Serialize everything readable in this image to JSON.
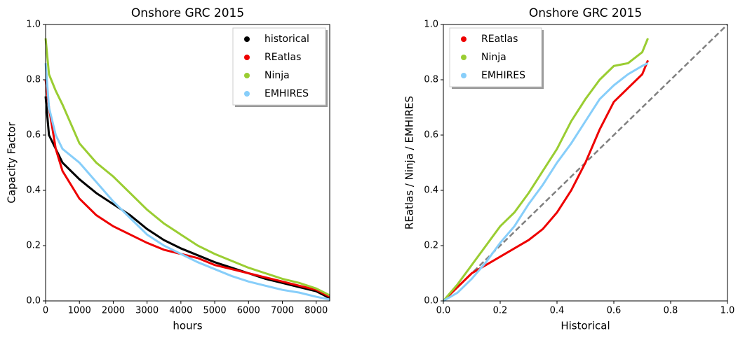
{
  "chart_data": [
    {
      "type": "line",
      "title": "Onshore GRC 2015",
      "xlabel": "hours",
      "ylabel": "Capacity Factor",
      "x": [
        0,
        100,
        300,
        500,
        1000,
        1500,
        2000,
        2500,
        3000,
        3500,
        4000,
        4500,
        5000,
        5500,
        6000,
        6500,
        7000,
        7500,
        8000,
        8400
      ],
      "series": [
        {
          "name": "historical",
          "color": "#000000",
          "values": [
            0.74,
            0.6,
            0.55,
            0.5,
            0.44,
            0.39,
            0.35,
            0.31,
            0.26,
            0.22,
            0.19,
            0.165,
            0.14,
            0.12,
            0.1,
            0.08,
            0.065,
            0.05,
            0.035,
            0.01
          ]
        },
        {
          "name": "REatlas",
          "color": "#ee0000",
          "values": [
            0.8,
            0.7,
            0.55,
            0.47,
            0.37,
            0.31,
            0.27,
            0.24,
            0.21,
            0.185,
            0.17,
            0.155,
            0.13,
            0.115,
            0.1,
            0.085,
            0.07,
            0.055,
            0.04,
            0.015
          ]
        },
        {
          "name": "Ninja",
          "color": "#9acd32",
          "values": [
            0.95,
            0.82,
            0.76,
            0.71,
            0.57,
            0.5,
            0.45,
            0.39,
            0.33,
            0.28,
            0.24,
            0.2,
            0.17,
            0.145,
            0.12,
            0.1,
            0.08,
            0.065,
            0.045,
            0.02
          ]
        },
        {
          "name": "EMHIRES",
          "color": "#87cefa",
          "values": [
            0.86,
            0.7,
            0.6,
            0.55,
            0.5,
            0.43,
            0.36,
            0.3,
            0.24,
            0.2,
            0.17,
            0.14,
            0.115,
            0.09,
            0.07,
            0.055,
            0.04,
            0.03,
            0.015,
            0.005
          ]
        }
      ],
      "xlim": [
        0,
        8400
      ],
      "ylim": [
        0,
        1
      ],
      "xticks": [
        0,
        1000,
        2000,
        3000,
        4000,
        5000,
        6000,
        7000,
        8000
      ],
      "yticks": [
        {
          "value": 0,
          "label": "0.0"
        },
        0.2,
        0.4,
        0.6,
        0.8,
        {
          "value": 1,
          "label": "1.0"
        }
      ],
      "legend": "upper right",
      "diagonal": false
    },
    {
      "type": "line",
      "title": "Onshore GRC 2015",
      "xlabel": "Historical",
      "ylabel": "REatlas / Ninja / EMHIRES",
      "x": [
        0,
        0.05,
        0.1,
        0.15,
        0.2,
        0.25,
        0.3,
        0.35,
        0.4,
        0.45,
        0.5,
        0.55,
        0.6,
        0.65,
        0.7,
        0.72
      ],
      "series": [
        {
          "name": "REatlas",
          "color": "#ee0000",
          "values": [
            0,
            0.05,
            0.1,
            0.13,
            0.16,
            0.19,
            0.22,
            0.26,
            0.32,
            0.4,
            0.5,
            0.62,
            0.72,
            0.77,
            0.82,
            0.87
          ]
        },
        {
          "name": "Ninja",
          "color": "#9acd32",
          "values": [
            0,
            0.06,
            0.13,
            0.2,
            0.27,
            0.32,
            0.39,
            0.47,
            0.55,
            0.65,
            0.73,
            0.8,
            0.85,
            0.86,
            0.9,
            0.95
          ]
        },
        {
          "name": "EMHIRES",
          "color": "#87cefa",
          "values": [
            0,
            0.03,
            0.08,
            0.14,
            0.21,
            0.27,
            0.35,
            0.42,
            0.5,
            0.57,
            0.65,
            0.73,
            0.78,
            0.82,
            0.85,
            0.86
          ]
        }
      ],
      "xlim": [
        0,
        1
      ],
      "ylim": [
        0,
        1
      ],
      "xticks": [
        {
          "value": 0,
          "label": "0.0"
        },
        0.2,
        0.4,
        0.6,
        0.8,
        {
          "value": 1,
          "label": "1.0"
        }
      ],
      "yticks": [
        {
          "value": 0,
          "label": "0.0"
        },
        0.2,
        0.4,
        0.6,
        0.8,
        {
          "value": 1,
          "label": "1.0"
        }
      ],
      "legend": "upper left",
      "diagonal": true,
      "diagonal_color": "#808080"
    }
  ]
}
